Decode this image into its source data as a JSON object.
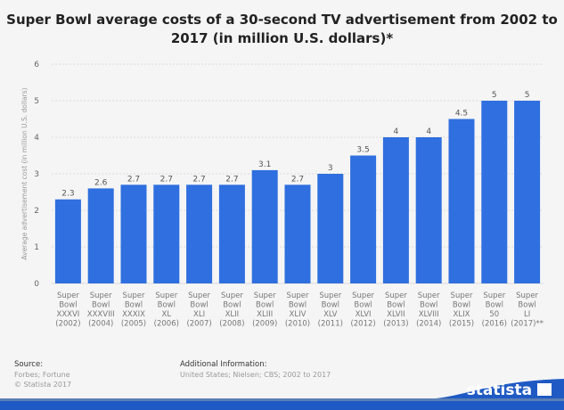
{
  "chart_data": {
    "type": "bar",
    "title": "Super Bowl average costs of a 30-second TV advertisement from 2002 to 2017 (in million U.S. dollars)*",
    "ylabel": "Average advertisement cost (in million U.S. dollars)",
    "xlabel": "",
    "ylim": [
      0,
      6
    ],
    "yticks": [
      "0",
      "1",
      "2",
      "3",
      "4",
      "5",
      "6"
    ],
    "grid": true,
    "categories": [
      [
        "Super",
        "Bowl",
        "XXXVI",
        "(2002)"
      ],
      [
        "Super",
        "Bowl",
        "XXXVIII",
        "(2004)"
      ],
      [
        "Super",
        "Bowl",
        "XXXIX",
        "(2005)"
      ],
      [
        "Super",
        "Bowl",
        "XL",
        "(2006)"
      ],
      [
        "Super",
        "Bowl",
        "XLI",
        "(2007)"
      ],
      [
        "Super",
        "Bowl",
        "XLII",
        "(2008)"
      ],
      [
        "Super",
        "Bowl",
        "XLIII",
        "(2009)"
      ],
      [
        "Super",
        "Bowl",
        "XLIV",
        "(2010)"
      ],
      [
        "Super",
        "Bowl",
        "XLV",
        "(2011)"
      ],
      [
        "Super",
        "Bowl",
        "XLVI",
        "(2012)"
      ],
      [
        "Super",
        "Bowl",
        "XLVII",
        "(2013)"
      ],
      [
        "Super",
        "Bowl",
        "XLVIII",
        "(2014)"
      ],
      [
        "Super",
        "Bowl",
        "XLIX",
        "(2015)"
      ],
      [
        "Super",
        "Bowl",
        "50",
        "(2016)"
      ],
      [
        "Super",
        "Bowl",
        "LI",
        "(2017)**"
      ]
    ],
    "values": [
      2.3,
      2.6,
      2.7,
      2.7,
      2.7,
      2.7,
      3.1,
      2.7,
      3,
      3.5,
      4,
      4,
      4.5,
      5,
      5
    ],
    "labels": [
      "2.3",
      "2.6",
      "2.7",
      "2.7",
      "2.7",
      "2.7",
      "3.1",
      "2.7",
      "3",
      "3.5",
      "4",
      "4",
      "4.5",
      "5",
      "5"
    ],
    "bar_color": "#2f6fdf"
  },
  "footer": {
    "source_label": "Source:",
    "source": "Forbes; Fortune",
    "copyright": "© Statista 2017",
    "info_label": "Additional Information:",
    "info": "United States; Nielsen; CBS; 2002 to 2017",
    "logo": "statista"
  }
}
